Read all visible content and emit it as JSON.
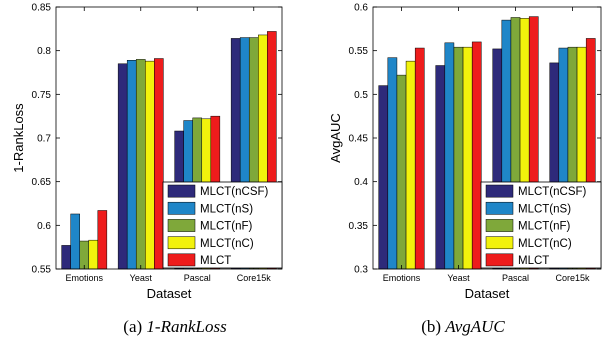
{
  "chart_data": [
    {
      "type": "bar",
      "categories": [
        "Emotions",
        "Yeast",
        "Pascal",
        "Core15k"
      ],
      "series": [
        {
          "name": "MLCT(nCSF)",
          "color": "#2e2a7a",
          "values": [
            0.577,
            0.785,
            0.708,
            0.814
          ]
        },
        {
          "name": "MLCT(nS)",
          "color": "#1f86c8",
          "values": [
            0.613,
            0.789,
            0.72,
            0.815
          ]
        },
        {
          "name": "MLCT(nF)",
          "color": "#7fa83a",
          "values": [
            0.582,
            0.79,
            0.723,
            0.815
          ]
        },
        {
          "name": "MLCT(nC)",
          "color": "#f2f20c",
          "values": [
            0.583,
            0.788,
            0.722,
            0.818
          ]
        },
        {
          "name": "MLCT",
          "color": "#ee1c1c",
          "values": [
            0.617,
            0.791,
            0.725,
            0.822
          ]
        }
      ],
      "xlabel": "Dataset",
      "ylabel": "1-RankLoss",
      "ylim": [
        0.55,
        0.85
      ],
      "yticks": [
        0.55,
        0.6,
        0.65,
        0.7,
        0.75,
        0.8,
        0.85
      ],
      "ytick_labels": [
        "0.55",
        "0.6",
        "0.65",
        "0.7",
        "0.75",
        "0.8",
        "0.85"
      ],
      "legend_position": "bottom-right",
      "caption_prefix": "(a)",
      "caption_italic": "1-RankLoss"
    },
    {
      "type": "bar",
      "categories": [
        "Emotions",
        "Yeast",
        "Pascal",
        "Core15k"
      ],
      "series": [
        {
          "name": "MLCT(nCSF)",
          "color": "#2e2a7a",
          "values": [
            0.51,
            0.533,
            0.552,
            0.536
          ]
        },
        {
          "name": "MLCT(nS)",
          "color": "#1f86c8",
          "values": [
            0.542,
            0.559,
            0.585,
            0.553
          ]
        },
        {
          "name": "MLCT(nF)",
          "color": "#7fa83a",
          "values": [
            0.522,
            0.554,
            0.588,
            0.554
          ]
        },
        {
          "name": "MLCT(nC)",
          "color": "#f2f20c",
          "values": [
            0.538,
            0.554,
            0.587,
            0.554
          ]
        },
        {
          "name": "MLCT",
          "color": "#ee1c1c",
          "values": [
            0.553,
            0.56,
            0.589,
            0.564
          ]
        }
      ],
      "xlabel": "Dataset",
      "ylabel": "AvgAUC",
      "ylim": [
        0.3,
        0.6
      ],
      "yticks": [
        0.3,
        0.35,
        0.4,
        0.45,
        0.5,
        0.55,
        0.6
      ],
      "ytick_labels": [
        "0.3",
        "0.35",
        "0.4",
        "0.45",
        "0.5",
        "0.55",
        "0.6"
      ],
      "legend_position": "bottom-right",
      "caption_prefix": "(b)",
      "caption_italic": "AvgAUC"
    }
  ]
}
